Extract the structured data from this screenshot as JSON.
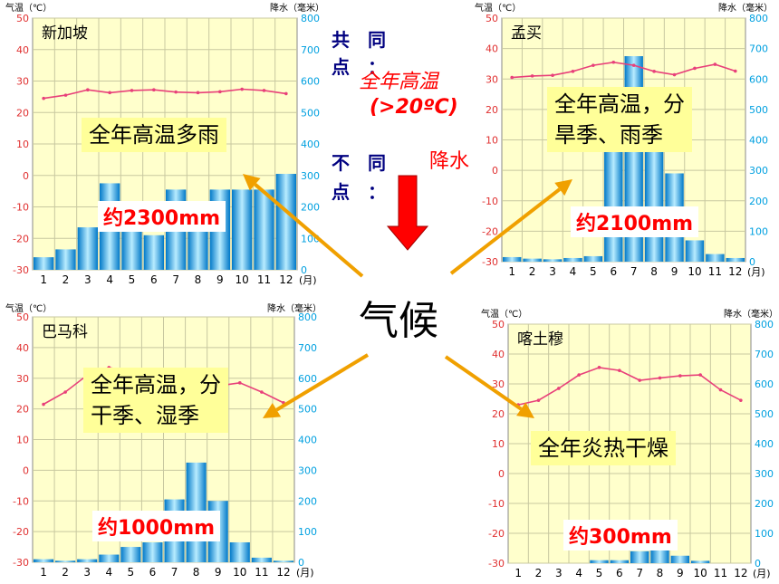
{
  "chart_data": [
    {
      "type": "bar+line",
      "title": "新加坡",
      "axis_left_label": "气温（℃）",
      "axis_right_label": "降水（毫米）",
      "month_unit": "(月)",
      "categories": [
        "1",
        "2",
        "3",
        "4",
        "5",
        "6",
        "7",
        "8",
        "9",
        "10",
        "11",
        "12"
      ],
      "temp_range": [
        -30,
        50
      ],
      "precip_range": [
        0,
        800
      ],
      "temp": [
        24.5,
        25.5,
        27.2,
        26.3,
        27,
        27.2,
        26.5,
        26.3,
        26.6,
        27.4,
        27,
        26
      ],
      "precip": [
        40,
        65,
        135,
        275,
        135,
        110,
        255,
        165,
        255,
        255,
        255,
        305
      ],
      "summary_lines": [
        "全年高温多雨"
      ],
      "total": "约2300mm"
    },
    {
      "type": "bar+line",
      "title": "孟买",
      "axis_left_label": "气温（℃）",
      "axis_right_label": "降水（毫米）",
      "month_unit": "(月)",
      "categories": [
        "1",
        "2",
        "3",
        "4",
        "5",
        "6",
        "7",
        "8",
        "9",
        "10",
        "11",
        "12"
      ],
      "temp_range": [
        -30,
        50
      ],
      "precip_range": [
        0,
        800
      ],
      "temp": [
        30.5,
        31,
        31.2,
        32.5,
        34.5,
        35.5,
        34.5,
        32.5,
        31.4,
        33.5,
        34.8,
        32.6
      ],
      "precip": [
        15,
        10,
        8,
        12,
        18,
        450,
        675,
        450,
        290,
        70,
        25,
        12
      ],
      "summary_lines": [
        "全年高温，分",
        "旱季、雨季"
      ],
      "total": "约2100mm"
    },
    {
      "type": "bar+line",
      "title": "巴马科",
      "axis_left_label": "气温（℃）",
      "axis_right_label": "降水（毫米）",
      "month_unit": "(月)",
      "categories": [
        "1",
        "2",
        "3",
        "4",
        "5",
        "6",
        "7",
        "8",
        "9",
        "10",
        "11",
        "12"
      ],
      "temp_range": [
        -30,
        50
      ],
      "precip_range": [
        0,
        800
      ],
      "temp": [
        21.5,
        25.5,
        31,
        33.5,
        32,
        29.5,
        27.5,
        26.5,
        27.5,
        28.5,
        25.5,
        22
      ],
      "precip": [
        10,
        5,
        10,
        25,
        50,
        65,
        205,
        325,
        200,
        65,
        15,
        5
      ],
      "summary_lines": [
        "全年高温，分",
        "干季、湿季"
      ],
      "total": "约1000mm"
    },
    {
      "type": "bar+line",
      "title": "喀土穆",
      "axis_left_label": "气温（℃）",
      "axis_right_label": "降水（毫米）",
      "month_unit": "(月)",
      "categories": [
        "1",
        "2",
        "3",
        "4",
        "5",
        "6",
        "7",
        "8",
        "9",
        "10",
        "11",
        "12"
      ],
      "temp_range": [
        -30,
        50
      ],
      "precip_range": [
        0,
        800
      ],
      "temp": [
        23,
        24.5,
        28.5,
        33,
        35.5,
        34.5,
        31.2,
        32,
        32.7,
        33,
        28,
        24.5
      ],
      "precip": [
        0,
        0,
        0,
        0,
        10,
        10,
        40,
        55,
        25,
        8,
        0,
        0
      ],
      "summary_lines": [
        "全年炎热干燥"
      ],
      "total": "约300mm"
    }
  ],
  "center": {
    "word": "气候",
    "common_label_top": "共　同",
    "common_label_bottom": "点　：",
    "common_value_1": "全年高温",
    "common_value_2": "(>20ºC)",
    "diff_label_top": "不　同",
    "diff_label_bottom": "点　：",
    "diff_value": "降水",
    "arrow_color": "#ff0000"
  },
  "colors": {
    "plot_bg": "#ffffcc",
    "grid": "#c8c8a0",
    "axis_num": "#00a0e0",
    "temp_line": "#e8407a",
    "bar_dark": "#0080d0",
    "bar_light": "#a0e0ff",
    "pointer": "#f0a000"
  }
}
